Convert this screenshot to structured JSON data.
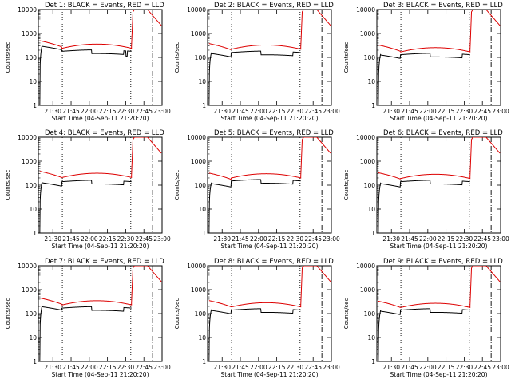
{
  "chart_data": {
    "type": "line",
    "layout": "3x3 grid",
    "x_range_hours": [
      21.3,
      23.0
    ],
    "x_ticks": [
      21.5,
      21.75,
      22.0,
      22.25,
      22.5,
      22.75,
      23.0
    ],
    "x_tick_labels": [
      "21:30",
      "21:45",
      "22:00",
      "22:15",
      "22:30",
      "22:45",
      "23:00"
    ],
    "xlabel": "Start Time (04-Sep-11 21:20:20)",
    "ylabel": "Counts/sec",
    "y_scale": "log",
    "ylim": [
      1,
      10000
    ],
    "y_ticks": [
      1,
      10,
      100,
      1000,
      10000
    ],
    "y_tick_labels": [
      "1",
      "10",
      "100",
      "1000",
      "10000"
    ],
    "series_colors": {
      "Events": "#000000",
      "LLD": "#dd0000"
    },
    "marker_lines": [
      {
        "x": 21.63,
        "style": "dotted"
      },
      {
        "x": 22.57,
        "style": "dotted"
      },
      {
        "x": 22.87,
        "style": "dash-dot"
      }
    ],
    "panels": [
      {
        "title": "Det 1: BLACK = Events, RED = LLD",
        "events_level": 180,
        "lld_level": 240,
        "lld_start": 500,
        "events_start": 300,
        "spike": true
      },
      {
        "title": "Det 2: BLACK = Events, RED = LLD",
        "events_level": 160,
        "lld_level": 220,
        "lld_start": 380,
        "events_start": 150,
        "spike": false
      },
      {
        "title": "Det 3: BLACK = Events, RED = LLD",
        "events_level": 130,
        "lld_level": 170,
        "lld_start": 330,
        "events_start": 130,
        "spike": false
      },
      {
        "title": "Det 4: BLACK = Events, RED = LLD",
        "events_level": 140,
        "lld_level": 210,
        "lld_start": 380,
        "events_start": 130,
        "spike": false
      },
      {
        "title": "Det 5: BLACK = Events, RED = LLD",
        "events_level": 150,
        "lld_level": 200,
        "lld_start": 320,
        "events_start": 120,
        "spike": false
      },
      {
        "title": "Det 6: BLACK = Events, RED = LLD",
        "events_level": 140,
        "lld_level": 190,
        "lld_start": 330,
        "events_start": 120,
        "spike": false
      },
      {
        "title": "Det 7: BLACK = Events, RED = LLD",
        "events_level": 170,
        "lld_level": 230,
        "lld_start": 450,
        "events_start": 200,
        "spike": false
      },
      {
        "title": "Det 8: BLACK = Events, RED = LLD",
        "events_level": 140,
        "lld_level": 190,
        "lld_start": 350,
        "events_start": 140,
        "spike": false
      },
      {
        "title": "Det 9: BLACK = Events, RED = LLD",
        "events_level": 140,
        "lld_level": 180,
        "lld_start": 330,
        "events_start": 130,
        "spike": false
      }
    ]
  }
}
